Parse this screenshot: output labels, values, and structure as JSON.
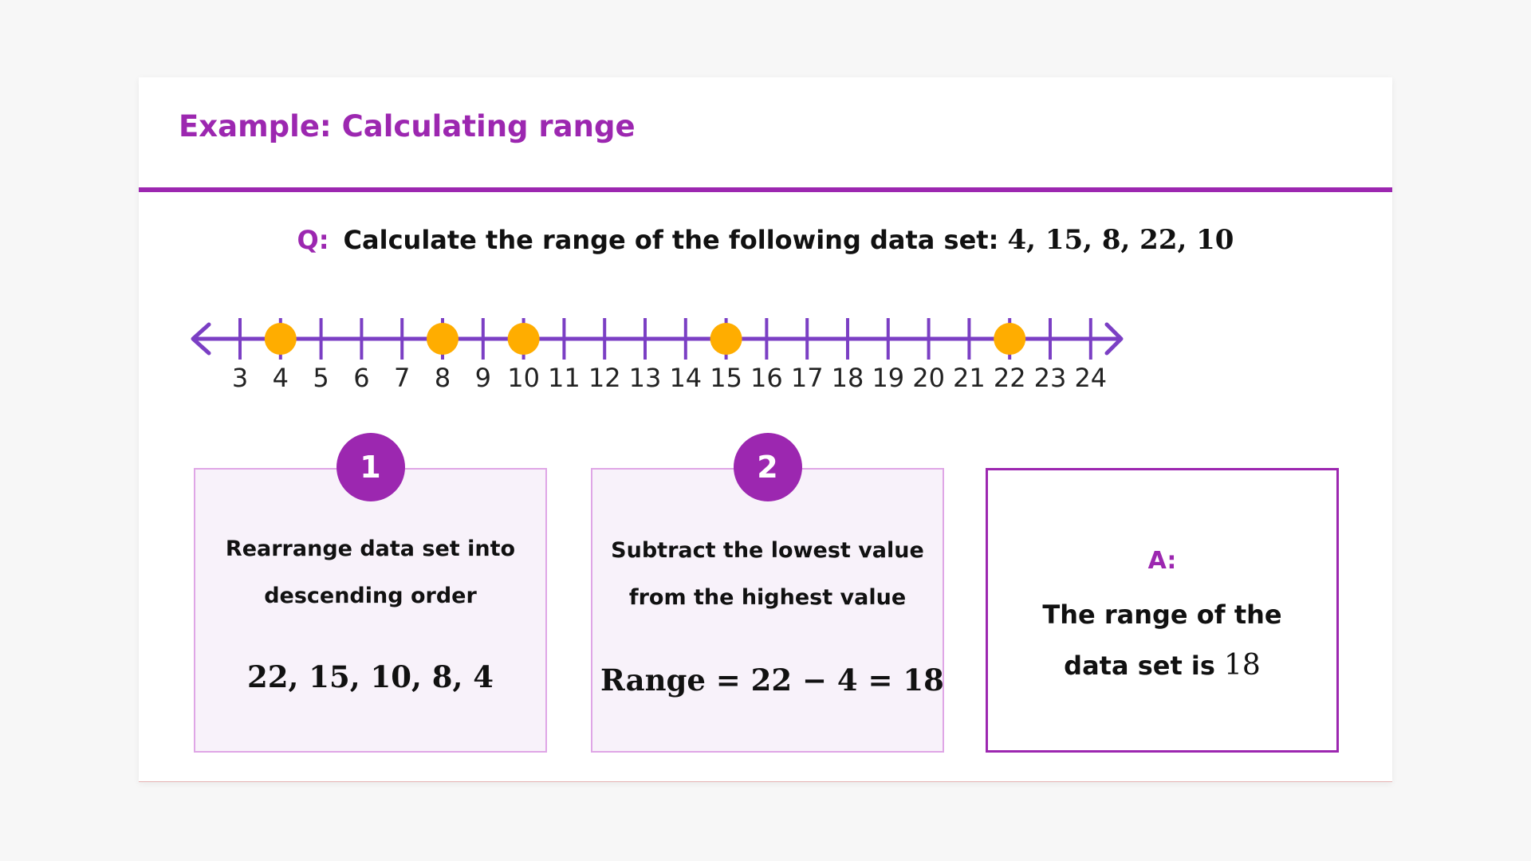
{
  "header": {
    "title": "Example: Calculating range"
  },
  "question": {
    "label": "Q:",
    "text": "Calculate the range of the following data set:",
    "data": "4, 15, 8, 22, 10"
  },
  "number_line": {
    "min": 3,
    "max": 24,
    "ticks": [
      3,
      4,
      5,
      6,
      7,
      8,
      9,
      10,
      11,
      12,
      13,
      14,
      15,
      16,
      17,
      18,
      19,
      20,
      21,
      22,
      23,
      24
    ],
    "points": [
      4,
      8,
      10,
      15,
      22
    ]
  },
  "steps": [
    {
      "number": "1",
      "line1": "Rearrange data set into",
      "line2": "descending order",
      "math": "22, 15, 10, 8, 4"
    },
    {
      "number": "2",
      "line1": "Subtract the lowest value",
      "line2": "from the highest value",
      "math": "Range = 22 − 4 = 18"
    }
  ],
  "answer": {
    "label": "A:",
    "line1": "The range of the",
    "line2": "data set is",
    "value": "18"
  },
  "colors": {
    "accent": "#9c27b0",
    "line": "#7b3fc4",
    "point": "#ffad00",
    "step_bg": "#f8f2fa",
    "step_border": "#dfa6e6"
  }
}
